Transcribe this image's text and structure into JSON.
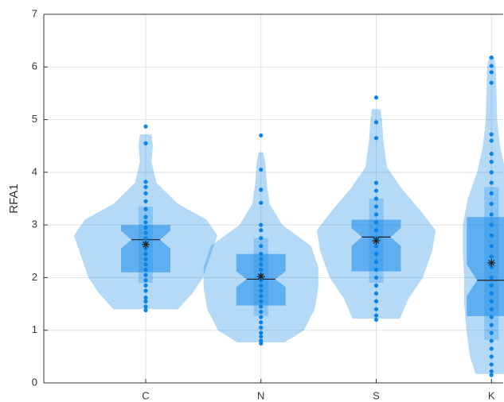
{
  "chart_data": {
    "type": "violin",
    "ylabel": "RFA1",
    "ylim": [
      0,
      7
    ],
    "yticks": [
      0,
      1,
      2,
      3,
      4,
      5,
      6,
      7
    ],
    "grid": true,
    "color": "#0a84e8",
    "groups": [
      {
        "name": "C",
        "kde_y": [
          1.4,
          1.7,
          2.0,
          2.4,
          2.8,
          3.1,
          3.4,
          3.8,
          4.2,
          4.5,
          4.72
        ],
        "kde_width": [
          0.45,
          0.65,
          0.8,
          0.9,
          1.0,
          0.85,
          0.45,
          0.15,
          0.08,
          0.1,
          0.08
        ],
        "q1": 2.1,
        "median": 2.72,
        "q3": 3.0,
        "notch": [
          2.55,
          2.89
        ],
        "whisker_low": 1.9,
        "whisker_high": 3.35,
        "mean": 2.63,
        "points": [
          1.38,
          1.45,
          1.55,
          1.62,
          1.75,
          1.85,
          1.95,
          2.05,
          2.15,
          2.25,
          2.35,
          2.45,
          2.55,
          2.65,
          2.75,
          2.85,
          2.95,
          3.05,
          3.15,
          3.3,
          3.45,
          3.6,
          3.72,
          3.82,
          4.55,
          4.87
        ]
      },
      {
        "name": "N",
        "kde_y": [
          0.77,
          1.0,
          1.4,
          1.8,
          2.2,
          2.6,
          3.0,
          3.4,
          3.8,
          4.2,
          4.38
        ],
        "kde_width": [
          0.33,
          0.6,
          0.75,
          0.8,
          0.8,
          0.7,
          0.3,
          0.12,
          0.08,
          0.06,
          0.03
        ],
        "q1": 1.47,
        "median": 1.97,
        "q3": 2.45,
        "notch": [
          1.82,
          2.12
        ],
        "whisker_low": 1.27,
        "whisker_high": 2.75,
        "mean": 2.02,
        "points": [
          0.75,
          0.8,
          0.88,
          0.95,
          1.05,
          1.15,
          1.25,
          1.35,
          1.45,
          1.55,
          1.65,
          1.75,
          1.85,
          1.95,
          2.05,
          2.15,
          2.25,
          2.35,
          2.45,
          2.6,
          2.75,
          2.9,
          3.0,
          3.42,
          3.67,
          4.05,
          4.7
        ]
      },
      {
        "name": "S",
        "kde_y": [
          1.22,
          1.6,
          2.0,
          2.5,
          2.9,
          3.3,
          3.7,
          4.1,
          4.6,
          5.0,
          5.2
        ],
        "kde_width": [
          0.33,
          0.45,
          0.65,
          0.78,
          0.83,
          0.6,
          0.35,
          0.15,
          0.1,
          0.08,
          0.06
        ],
        "q1": 2.12,
        "median": 2.77,
        "q3": 3.1,
        "notch": [
          2.6,
          2.94
        ],
        "whisker_low": 1.9,
        "whisker_high": 3.5,
        "mean": 2.7,
        "points": [
          1.2,
          1.28,
          1.4,
          1.55,
          1.7,
          1.85,
          2.0,
          2.15,
          2.3,
          2.45,
          2.6,
          2.75,
          2.9,
          3.05,
          3.2,
          3.35,
          3.5,
          3.65,
          3.8,
          4.65,
          4.95,
          5.42
        ]
      },
      {
        "name": "K",
        "kde_y": [
          0.17,
          0.5,
          1.0,
          1.5,
          2.0,
          2.5,
          3.0,
          3.5,
          4.0,
          4.5,
          5.0,
          5.5,
          6.0,
          6.2
        ],
        "kde_width": [
          0.22,
          0.3,
          0.35,
          0.38,
          0.38,
          0.4,
          0.4,
          0.33,
          0.2,
          0.12,
          0.08,
          0.07,
          0.06,
          0.03
        ],
        "q1": 1.27,
        "median": 1.95,
        "q3": 3.15,
        "notch": [
          1.65,
          2.25
        ],
        "whisker_low": 0.82,
        "whisker_high": 3.72,
        "mean": 2.28,
        "points": [
          0.15,
          0.22,
          0.35,
          0.5,
          0.65,
          0.8,
          0.95,
          1.1,
          1.25,
          1.4,
          1.55,
          1.7,
          1.85,
          2.0,
          2.2,
          2.4,
          2.6,
          2.8,
          3.0,
          3.2,
          3.4,
          3.6,
          3.8,
          4.0,
          4.2,
          4.35,
          4.6,
          4.72,
          5.7,
          5.9,
          6.02,
          6.18
        ]
      }
    ]
  }
}
